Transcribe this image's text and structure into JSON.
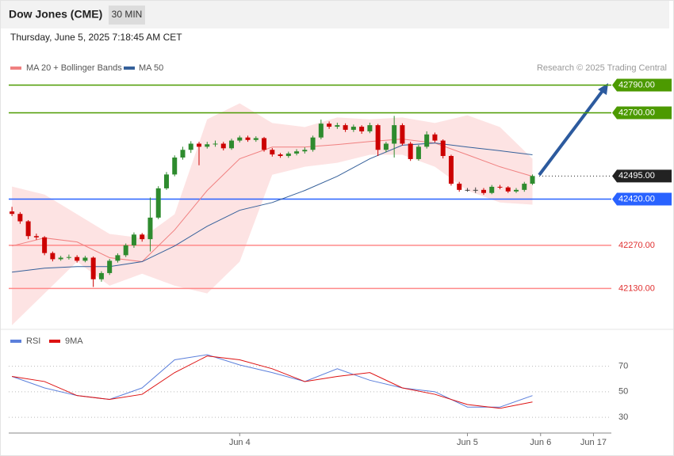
{
  "chart_data": {
    "type": "candlestick",
    "title": "Dow Jones (CME)",
    "interval": "30 MIN",
    "subtitle": "Thursday, June 5, 2025 7:18:45 AM CET",
    "source": "Research © 2025 Trading Central",
    "ylim": [
      42000,
      42835
    ],
    "xlim": [
      -0.4,
      73.7
    ],
    "xticks": [
      {
        "value": 28,
        "label": "Jun 4"
      },
      {
        "value": 56,
        "label": "Jun 5"
      },
      {
        "value": 65,
        "label": "Jun 6"
      },
      {
        "value": 71.5,
        "label": "Jun 17"
      }
    ],
    "up_color": "#2e8b2e",
    "down_color": "#cc0000",
    "candles": [
      [
        42380,
        42395,
        42365,
        42372
      ],
      [
        42372,
        42378,
        42340,
        42348
      ],
      [
        42348,
        42352,
        42290,
        42300
      ],
      [
        42300,
        42308,
        42288,
        42296
      ],
      [
        42296,
        42300,
        42238,
        42245
      ],
      [
        42245,
        42250,
        42218,
        42225
      ],
      [
        42225,
        42236,
        42220,
        42230
      ],
      [
        42230,
        42240,
        42224,
        42232
      ],
      [
        42232,
        42238,
        42214,
        42220
      ],
      [
        42220,
        42236,
        42215,
        42230
      ],
      [
        42230,
        42234,
        42135,
        42160
      ],
      [
        42160,
        42186,
        42152,
        42180
      ],
      [
        42180,
        42226,
        42174,
        42220
      ],
      [
        42220,
        42244,
        42214,
        42238
      ],
      [
        42238,
        42276,
        42232,
        42270
      ],
      [
        42270,
        42312,
        42262,
        42305
      ],
      [
        42305,
        42310,
        42282,
        42290
      ],
      [
        42290,
        42425,
        42250,
        42360
      ],
      [
        42360,
        42462,
        42355,
        42455
      ],
      [
        42455,
        42508,
        42450,
        42500
      ],
      [
        42500,
        42562,
        42494,
        42555
      ],
      [
        42555,
        42590,
        42548,
        42580
      ],
      [
        42580,
        42608,
        42570,
        42600
      ],
      [
        42600,
        42606,
        42530,
        42590
      ],
      [
        42590,
        42606,
        42584,
        42598
      ],
      [
        42598,
        42610,
        42590,
        42600
      ],
      [
        42600,
        42606,
        42578,
        42585
      ],
      [
        42585,
        42616,
        42580,
        42610
      ],
      [
        42610,
        42626,
        42604,
        42620
      ],
      [
        42620,
        42626,
        42606,
        42612
      ],
      [
        42612,
        42624,
        42606,
        42618
      ],
      [
        42618,
        42622,
        42574,
        42580
      ],
      [
        42580,
        42586,
        42558,
        42565
      ],
      [
        42565,
        42570,
        42554,
        42560
      ],
      [
        42560,
        42574,
        42554,
        42568
      ],
      [
        42568,
        42582,
        42562,
        42575
      ],
      [
        42575,
        42588,
        42568,
        42580
      ],
      [
        42580,
        42626,
        42574,
        42620
      ],
      [
        42620,
        42678,
        42614,
        42665
      ],
      [
        42665,
        42672,
        42648,
        42655
      ],
      [
        42655,
        42668,
        42648,
        42660
      ],
      [
        42660,
        42666,
        42638,
        42645
      ],
      [
        42645,
        42662,
        42638,
        42655
      ],
      [
        42655,
        42660,
        42632,
        42640
      ],
      [
        42640,
        42668,
        42634,
        42660
      ],
      [
        42660,
        42664,
        42560,
        42580
      ],
      [
        42580,
        42606,
        42572,
        42600
      ],
      [
        42600,
        42690,
        42555,
        42660
      ],
      [
        42660,
        42666,
        42594,
        42600
      ],
      [
        42600,
        42606,
        42544,
        42550
      ],
      [
        42550,
        42596,
        42545,
        42590
      ],
      [
        42590,
        42640,
        42584,
        42630
      ],
      [
        42630,
        42636,
        42604,
        42610
      ],
      [
        42610,
        42614,
        42552,
        42560
      ],
      [
        42560,
        42564,
        42464,
        42470
      ],
      [
        42470,
        42476,
        42444,
        42450
      ],
      [
        42450,
        42456,
        42444,
        42450
      ],
      [
        42450,
        42458,
        42440,
        42450
      ],
      [
        42450,
        42456,
        42434,
        42440
      ],
      [
        42440,
        42466,
        42436,
        42460
      ],
      [
        42460,
        42466,
        42452,
        42458
      ],
      [
        42458,
        42462,
        42440,
        42445
      ],
      [
        42445,
        42456,
        42440,
        42450
      ],
      [
        42450,
        42476,
        42444,
        42470
      ],
      [
        42470,
        42500,
        42466,
        42495
      ]
    ],
    "overlay_x": [
      0,
      4,
      8,
      12,
      16,
      20,
      24,
      28,
      32,
      36,
      40,
      44,
      48,
      52,
      56,
      60,
      64
    ],
    "bands": {
      "name": "MA 20 + Bollinger Bands",
      "color": "#f08080",
      "fill": "#fde3e3",
      "ma": [
        42268,
        42294,
        42281,
        42230,
        42217,
        42320,
        42448,
        42551,
        42589,
        42589,
        42597,
        42607,
        42615,
        42602,
        42564,
        42525,
        42494
      ],
      "upper": [
        42461,
        42435,
        42371,
        42307,
        42294,
        42371,
        42679,
        42731,
        42667,
        42654,
        42685,
        42679,
        42685,
        42667,
        42692,
        42654,
        42551
      ],
      "lower": [
        42011,
        42114,
        42217,
        42139,
        42178,
        42139,
        42114,
        42217,
        42499,
        42525,
        42538,
        42564,
        42564,
        42525,
        42448,
        42409,
        42402
      ]
    },
    "ma50": {
      "name": "MA 50",
      "color": "#35609a",
      "values": [
        42183,
        42196,
        42201,
        42201,
        42217,
        42268,
        42332,
        42384,
        42409,
        42448,
        42494,
        42551,
        42595,
        42602,
        42589,
        42577,
        42564
      ]
    },
    "levels": [
      {
        "value": 42790,
        "label": "42790.00",
        "color": "#4c9a00"
      },
      {
        "value": 42700,
        "label": "42700.00",
        "color": "#4c9a00"
      },
      {
        "value": 42495,
        "label": "42495.00",
        "color": "#222222"
      },
      {
        "value": 42420,
        "label": "42420.00",
        "color": "#2962ff"
      },
      {
        "value": 42270,
        "label": "42270.00",
        "color": "#ff8a8a"
      },
      {
        "value": 42130,
        "label": "42130.00",
        "color": "#ff8a8a"
      }
    ],
    "rsi": {
      "ylim": [
        22,
        84
      ],
      "yticks": [
        30,
        50,
        70
      ],
      "series": [
        {
          "name": "RSI",
          "color": "#5b7fdb",
          "values": [
            62,
            53,
            47,
            44,
            53,
            75,
            79,
            71,
            65,
            58,
            68,
            59,
            53,
            50,
            38,
            38,
            47
          ]
        },
        {
          "name": "9MA",
          "color": "#dd1111",
          "values": [
            62,
            58,
            47,
            44,
            48,
            65,
            78,
            75,
            68,
            58,
            62,
            65,
            53,
            48,
            40,
            37,
            42
          ]
        }
      ]
    }
  }
}
